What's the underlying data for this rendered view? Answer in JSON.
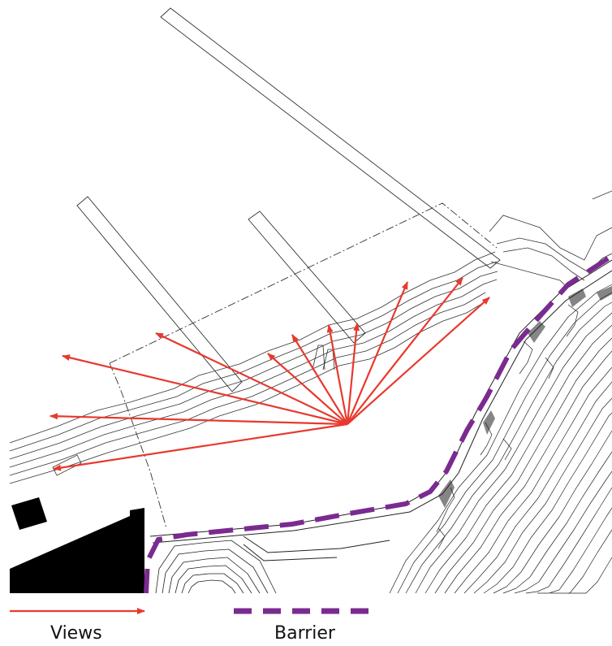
{
  "legend": {
    "views_label": "Views",
    "barrier_label": "Barrier"
  },
  "colors": {
    "views_arrow": "#e8392e",
    "barrier": "#7b2a90",
    "linework": "#222222",
    "building_fill": "#000000"
  }
}
